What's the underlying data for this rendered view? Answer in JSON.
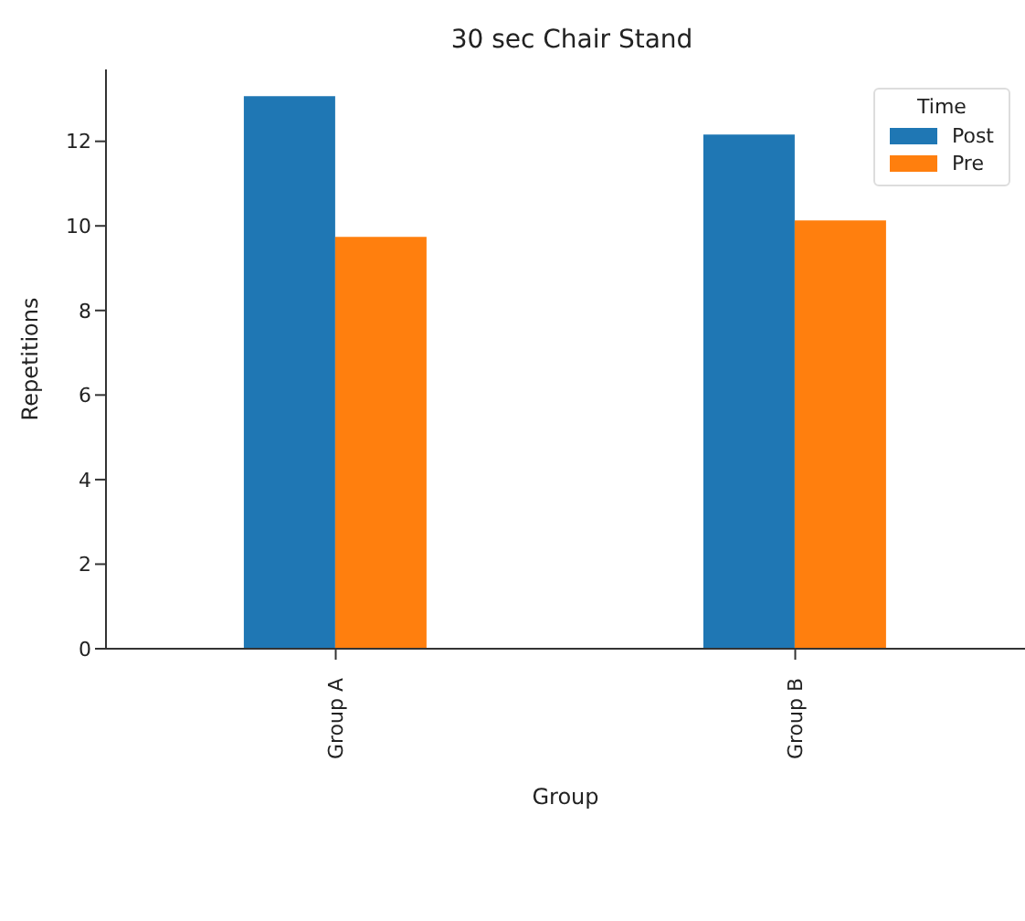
{
  "chart_data": {
    "type": "bar",
    "title": "30 sec Chair Stand",
    "xlabel": "Group",
    "ylabel": "Repetitions",
    "legend_title": "Time",
    "categories": [
      "Group A",
      "Group B"
    ],
    "series": [
      {
        "name": "Post",
        "color": "#1f77b4",
        "values": [
          13.07,
          12.16
        ]
      },
      {
        "name": "Pre",
        "color": "#ff7f0e",
        "values": [
          9.74,
          10.13
        ]
      }
    ],
    "ylim": [
      0,
      13.7
    ],
    "yticks": [
      0,
      2,
      4,
      6,
      8,
      10,
      12
    ],
    "grid": false,
    "legend": "top right"
  }
}
